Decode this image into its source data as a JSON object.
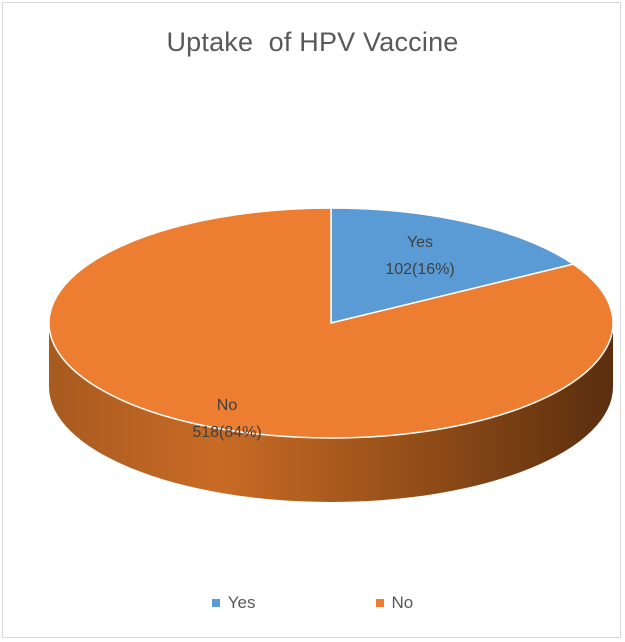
{
  "chart_data": {
    "type": "pie",
    "title": "Uptake  of HPV Vaccine",
    "slices": [
      {
        "label": "Yes",
        "value": 102,
        "percent": 16,
        "data_label": "102(16%)",
        "color": "#5b9bd5"
      },
      {
        "label": "No",
        "value": 518,
        "percent": 84,
        "data_label": "518(84%)",
        "color": "#ed7d31"
      }
    ],
    "legend": {
      "position": "bottom",
      "entries": [
        "Yes",
        "No"
      ]
    },
    "style": "3d"
  }
}
